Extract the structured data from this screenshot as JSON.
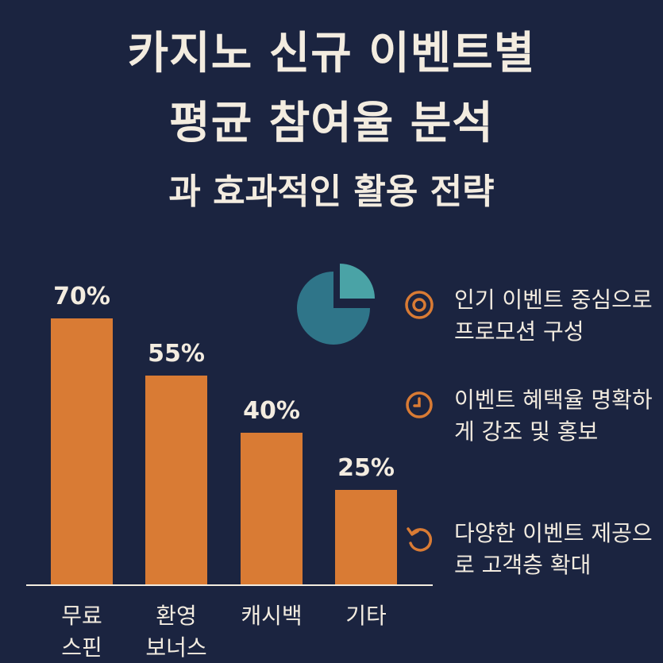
{
  "title": {
    "line1": "카지노 신규 이벤트별",
    "line2": "평균 참여율 분석",
    "line3": "과 효과적인 활용 전략"
  },
  "chart_data": {
    "type": "bar",
    "categories": [
      [
        "무료",
        "스핀"
      ],
      [
        "환영",
        "보너스"
      ],
      [
        "캐시백"
      ],
      [
        "기타"
      ]
    ],
    "values": [
      70,
      55,
      40,
      25
    ],
    "value_labels": [
      "70%",
      "55%",
      "40%",
      "25%"
    ],
    "ylim": [
      0,
      80
    ],
    "grid": false,
    "bar_color": "#d97b34"
  },
  "tips": [
    {
      "icon": "target-icon",
      "text": "인기 이벤트 중심으로 프로모션 구성"
    },
    {
      "icon": "clock-icon",
      "text": "이벤트 혜택율 명확하게 강조 및 홍보"
    },
    {
      "icon": "refresh-icon",
      "text": "다양한 이벤트 제공으로 고객층 확대"
    }
  ],
  "colors": {
    "background": "#1b2440",
    "accent": "#d97b34",
    "pie_dark": "#2f7589",
    "pie_light": "#4aa3a6",
    "text": "#f3ece0"
  }
}
